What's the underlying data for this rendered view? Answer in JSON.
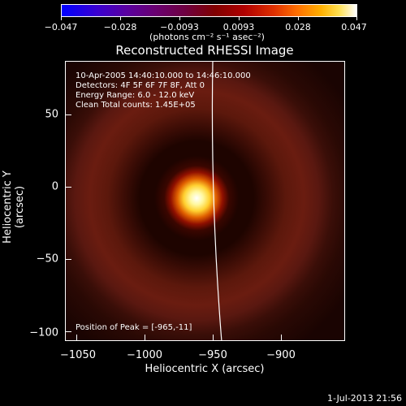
{
  "colorbar": {
    "ticks": [
      "−0.047",
      "−0.028",
      "−0.0093",
      "0.0093",
      "0.028",
      "0.047"
    ],
    "unit": "(photons cm⁻² s⁻¹ asec⁻²)"
  },
  "title": "Reconstructed RHESSI Image",
  "info": {
    "time_range": "10-Apr-2005 14:40:10.000 to 14:46:10.000",
    "detectors": "Detectors: 4F 5F 6F 7F 8F, Att 0",
    "energy": "Energy Range: 6.0 - 12.0 keV",
    "method": "Clean    Total counts: 1.45E+05",
    "peak": "Position of Peak = [-965,-11]"
  },
  "x_axis": {
    "label": "Heliocentric X (arcsec)",
    "ticks": [
      "−1050",
      "−1000",
      "−950",
      "−900"
    ]
  },
  "y_axis": {
    "label": "Heliocentric Y (arcsec)",
    "ticks": [
      "50",
      "0",
      "−50",
      "−100"
    ]
  },
  "footer": "1-Jul-2013 21:56"
}
